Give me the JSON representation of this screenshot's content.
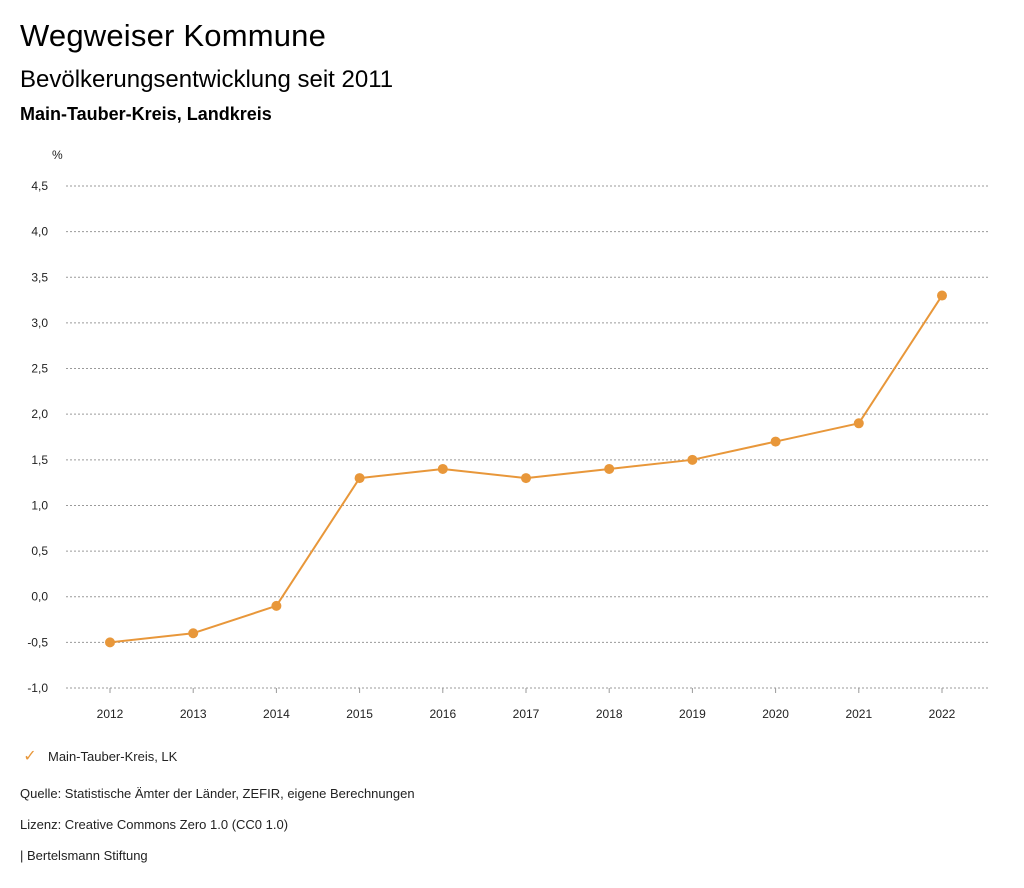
{
  "header": {
    "title": "Wegweiser Kommune",
    "subtitle": "Bevölkerungsentwicklung seit 2011",
    "region": "Main-Tauber-Kreis, Landkreis"
  },
  "colors": {
    "series": "#e8973a",
    "grid": "#9a9a9a",
    "axis": "#222222"
  },
  "chart_data": {
    "type": "line",
    "title": "Bevölkerungsentwicklung seit 2011",
    "xlabel": "",
    "ylabel": "%",
    "x": [
      "2012",
      "2013",
      "2014",
      "2015",
      "2016",
      "2017",
      "2018",
      "2019",
      "2020",
      "2021",
      "2022"
    ],
    "series": [
      {
        "name": "Main-Tauber-Kreis, LK",
        "values": [
          -0.5,
          -0.4,
          -0.1,
          1.3,
          1.4,
          1.3,
          1.4,
          1.5,
          1.7,
          1.9,
          3.3
        ]
      }
    ],
    "ylim": [
      -1.0,
      4.5
    ],
    "yticks": [
      "-1,0",
      "-0,5",
      "0,0",
      "0,5",
      "1,0",
      "1,5",
      "2,0",
      "2,5",
      "3,0",
      "3,5",
      "4,0",
      "4,5"
    ],
    "ytick_values": [
      -1.0,
      -0.5,
      0.0,
      0.5,
      1.0,
      1.5,
      2.0,
      2.5,
      3.0,
      3.5,
      4.0,
      4.5
    ],
    "grid": true,
    "legend": "bottom-left"
  },
  "legend": {
    "label": "Main-Tauber-Kreis, LK",
    "icon": "check-icon"
  },
  "footer": {
    "source": "Quelle: Statistische Ämter der Länder, ZEFIR, eigene Berechnungen",
    "license": "Lizenz: Creative Commons Zero 1.0 (CC0 1.0)",
    "publisher": "| Bertelsmann Stiftung"
  }
}
